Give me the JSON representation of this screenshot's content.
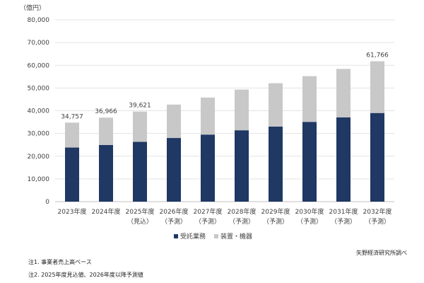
{
  "chart_data": {
    "type": "bar",
    "stacked": true,
    "y_unit_label": "（億円）",
    "categories": [
      {
        "year": "2023年度",
        "sub": ""
      },
      {
        "year": "2024年度",
        "sub": ""
      },
      {
        "year": "2025年度",
        "sub": "（見込）"
      },
      {
        "year": "2026年度",
        "sub": "（予測）"
      },
      {
        "year": "2027年度",
        "sub": "（予測）"
      },
      {
        "year": "2028年度",
        "sub": "（予測）"
      },
      {
        "year": "2029年度",
        "sub": "（予測）"
      },
      {
        "year": "2030年度",
        "sub": "（予測）"
      },
      {
        "year": "2031年度",
        "sub": "（予測）"
      },
      {
        "year": "2032年度",
        "sub": "（予測）"
      }
    ],
    "series": [
      {
        "name": "受託業務",
        "color": "#1f3864",
        "values": [
          23800,
          24900,
          26300,
          28000,
          29500,
          31400,
          33000,
          35100,
          37100,
          39000
        ]
      },
      {
        "name": "装置・機器",
        "color": "#c8c8c8",
        "values": [
          10957,
          12066,
          13321,
          14700,
          16300,
          17900,
          19100,
          20100,
          21300,
          22766
        ]
      }
    ],
    "data_labels": [
      "34,757",
      "36,966",
      "39,621",
      "",
      "",
      "",
      "",
      "",
      "",
      "61,766"
    ],
    "ylim": [
      0,
      80000
    ],
    "yticks": [
      "0",
      "10,000",
      "20,000",
      "30,000",
      "40,000",
      "50,000",
      "60,000",
      "70,000",
      "80,000"
    ],
    "legend_position": "bottom-center",
    "grid": true
  },
  "notes": [
    "注1. 事業者売上高ベース",
    "注2. 2025年度見込値、2026年度以降予測値"
  ],
  "source": "矢野経済研究所調べ"
}
